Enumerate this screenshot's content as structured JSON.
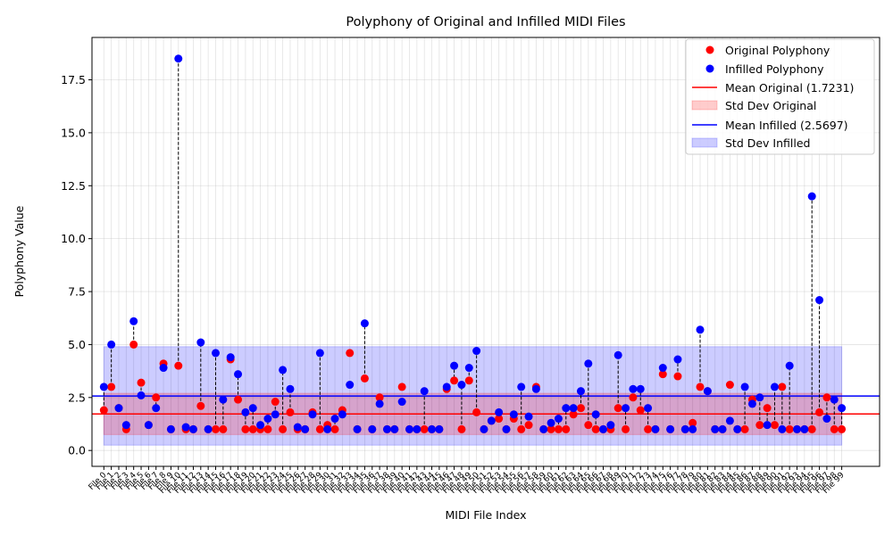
{
  "chart_data": {
    "type": "scatter",
    "title": "Polyphony of Original and Infilled MIDI Files",
    "xlabel": "MIDI File Index",
    "ylabel": "Polyphony Value",
    "ylim": [
      -0.75,
      19.5
    ],
    "yticks": [
      0.0,
      2.5,
      5.0,
      7.5,
      10.0,
      12.5,
      15.0,
      17.5
    ],
    "ytick_labels": [
      "0.0",
      "2.5",
      "5.0",
      "7.5",
      "10.0",
      "12.5",
      "15.0",
      "17.5"
    ],
    "grid": true,
    "legend_position": "top-right",
    "x_tick_prefix": "File ",
    "x": [
      0,
      1,
      2,
      3,
      4,
      5,
      6,
      7,
      8,
      9,
      10,
      11,
      12,
      13,
      14,
      15,
      16,
      17,
      18,
      19,
      20,
      21,
      22,
      23,
      24,
      25,
      26,
      27,
      28,
      29,
      30,
      31,
      32,
      33,
      34,
      35,
      36,
      37,
      38,
      39,
      40,
      41,
      42,
      43,
      44,
      45,
      46,
      47,
      48,
      49,
      50,
      51,
      52,
      53,
      54,
      55,
      56,
      57,
      58,
      59,
      60,
      61,
      62,
      63,
      64,
      65,
      66,
      67,
      68,
      69,
      70,
      71,
      72,
      73,
      74,
      75,
      76,
      77,
      78,
      79,
      80,
      81,
      82,
      83,
      84,
      85,
      86,
      87,
      88,
      89,
      90,
      91,
      92,
      93,
      94,
      95,
      96,
      97,
      98,
      99
    ],
    "series": [
      {
        "name": "Original Polyphony",
        "color": "#ff0000",
        "values": [
          1.9,
          3.0,
          2.0,
          1.0,
          5.0,
          3.2,
          1.2,
          2.5,
          4.1,
          1.0,
          4.0,
          1.0,
          1.0,
          2.1,
          1.0,
          1.0,
          1.0,
          4.3,
          2.4,
          1.0,
          1.0,
          1.0,
          1.0,
          2.3,
          1.0,
          1.8,
          1.0,
          1.0,
          1.8,
          1.0,
          1.2,
          1.0,
          1.9,
          4.6,
          1.0,
          3.4,
          1.0,
          2.5,
          1.0,
          1.0,
          3.0,
          1.0,
          1.0,
          1.0,
          1.0,
          1.0,
          2.9,
          3.3,
          1.0,
          3.3,
          1.8,
          1.0,
          1.4,
          1.5,
          1.0,
          1.5,
          1.0,
          1.2,
          3.0,
          1.0,
          1.0,
          1.0,
          1.0,
          1.7,
          2.0,
          1.2,
          1.0,
          1.0,
          1.0,
          2.0,
          1.0,
          2.5,
          1.9,
          1.0,
          1.0,
          3.6,
          1.0,
          3.5,
          1.0,
          1.3,
          3.0,
          2.8,
          1.0,
          1.0,
          3.1,
          1.0,
          1.0,
          2.4,
          1.2,
          2.0,
          1.2,
          3.0,
          1.0,
          1.0,
          1.0,
          1.0,
          1.8,
          2.5,
          1.0,
          1.0
        ],
        "connector_values": [
          1.9,
          3.0,
          2.0,
          1.0,
          5.0,
          3.2,
          1.2,
          2.5,
          3.9,
          1.0,
          4.0,
          1.0,
          1.0,
          2.1,
          1.0,
          1.0,
          1.0,
          4.3,
          2.4,
          1.0,
          1.0,
          1.0,
          1.0,
          2.3,
          1.0,
          1.8,
          1.0,
          1.0,
          1.8,
          1.0,
          1.2,
          1.0,
          1.9,
          3.1,
          1.0,
          3.4,
          1.0,
          2.2,
          1.0,
          1.0,
          2.3,
          1.0,
          1.0,
          1.0,
          1.0,
          1.0,
          2.9,
          3.2,
          1.0,
          3.3,
          1.8,
          1.0,
          1.4,
          1.5,
          1.0,
          1.5,
          1.0,
          1.2,
          2.9,
          1.0,
          1.0,
          1.0,
          1.0,
          1.7,
          2.0,
          1.2,
          1.0,
          1.0,
          1.0,
          2.0,
          1.0,
          2.5,
          1.9,
          1.0,
          1.0,
          3.6,
          1.0,
          3.5,
          1.0,
          1.1,
          3.0,
          2.8,
          1.0,
          1.0,
          1.4,
          1.0,
          1.0,
          2.2,
          1.2,
          2.0,
          1.2,
          3.0,
          1.0,
          1.0,
          1.0,
          1.0,
          1.8,
          2.5,
          1.0,
          1.0
        ]
      },
      {
        "name": "Infilled Polyphony",
        "color": "#0000ff",
        "values": [
          3.0,
          5.0,
          2.0,
          1.2,
          6.1,
          2.6,
          1.2,
          2.0,
          3.9,
          1.0,
          18.5,
          1.1,
          1.0,
          5.1,
          1.0,
          4.6,
          2.4,
          4.4,
          3.6,
          1.8,
          2.0,
          1.2,
          1.5,
          1.7,
          3.8,
          2.9,
          1.1,
          1.0,
          1.7,
          4.6,
          1.0,
          1.5,
          1.7,
          3.1,
          1.0,
          6.0,
          1.0,
          2.2,
          1.0,
          1.0,
          2.3,
          1.0,
          1.0,
          2.8,
          1.0,
          1.0,
          3.0,
          4.0,
          3.1,
          3.9,
          4.7,
          1.0,
          1.4,
          1.8,
          1.0,
          1.7,
          3.0,
          1.6,
          2.9,
          1.0,
          1.3,
          1.5,
          2.0,
          2.0,
          2.8,
          4.1,
          1.7,
          1.0,
          1.2,
          4.5,
          2.0,
          2.9,
          2.9,
          2.0,
          1.0,
          3.9,
          1.0,
          4.3,
          1.0,
          1.0,
          5.7,
          2.8,
          1.0,
          1.0,
          1.4,
          1.0,
          3.0,
          2.2,
          2.5,
          1.2,
          3.0,
          1.0,
          4.0,
          1.0,
          1.0,
          12.0,
          7.1,
          1.5,
          2.4,
          2.0
        ]
      }
    ],
    "reference_lines": [
      {
        "name": "Mean Original (1.7231)",
        "color": "#ff0000",
        "value": 1.7231
      },
      {
        "name": "Mean Infilled (2.5697)",
        "color": "#0000ff",
        "value": 2.5697
      }
    ],
    "bands": [
      {
        "name": "Std Dev Original",
        "color": "#ff0000",
        "low": 0.75,
        "high": 2.7
      },
      {
        "name": "Std Dev Infilled",
        "color": "#0000ff",
        "low": 0.25,
        "high": 4.9
      }
    ]
  }
}
